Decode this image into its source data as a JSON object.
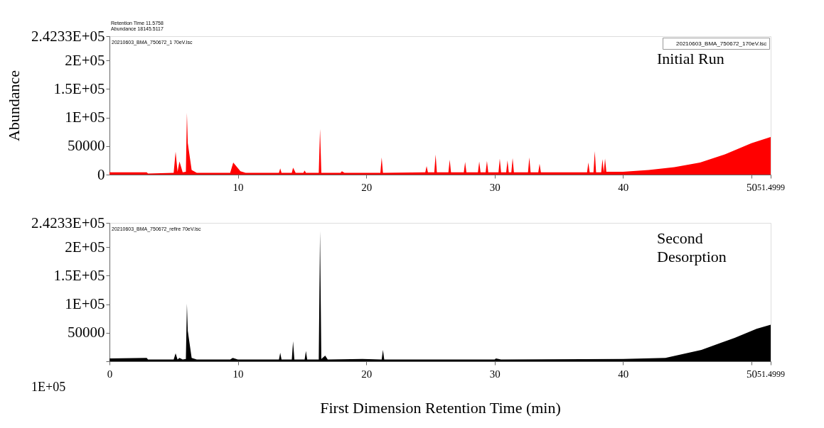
{
  "chart_data": [
    {
      "type": "area",
      "ylabel": "Abundance",
      "xlim": [
        0,
        51.4999
      ],
      "ylim": [
        0,
        242330
      ],
      "xticks": [
        10,
        20,
        30,
        40,
        50,
        51.4999
      ],
      "yticks": [
        0,
        50000,
        {
          "value": 100000,
          "label": "1E+05"
        },
        {
          "value": 150000,
          "label": "1.5E+05"
        },
        {
          "value": 200000,
          "label": "2E+05"
        },
        {
          "value": 242330,
          "label": "2.4233E+05"
        }
      ],
      "grid": false,
      "legend": "top right",
      "annotations": [
        "Retention Time 11.5758",
        "Abundance 18145.5117",
        "20210603_BMA_750672_1 70eV.lsc",
        "Initial Run"
      ],
      "series": [
        {
          "name": "20210603_BMA_750672_170eV.lsc",
          "color": "#ff0000",
          "x": [
            0,
            2.9,
            3.0,
            5.0,
            5.15,
            5.3,
            5.45,
            5.7,
            5.95,
            6.03,
            6.1,
            6.4,
            6.8,
            9.4,
            9.64,
            10.2,
            10.6,
            13.2,
            13.3,
            13.4,
            14.2,
            14.3,
            14.5,
            15.1,
            15.2,
            15.3,
            16.3,
            16.4,
            16.5,
            18.0,
            18.1,
            18.3,
            21.1,
            21.2,
            21.3,
            24.6,
            24.7,
            24.8,
            25.3,
            25.4,
            25.5,
            26.4,
            26.5,
            26.6,
            27.6,
            27.7,
            27.8,
            28.7,
            28.8,
            28.9,
            29.3,
            29.4,
            29.5,
            30.3,
            30.4,
            30.5,
            30.9,
            31.0,
            31.1,
            31.3,
            31.4,
            31.5,
            32.6,
            32.7,
            32.8,
            33.4,
            33.5,
            33.6,
            37.2,
            37.3,
            37.4,
            37.7,
            37.8,
            37.9,
            38.3,
            38.4,
            38.5,
            38.6,
            38.7,
            40,
            42,
            44,
            46,
            48,
            50,
            51.4999
          ],
          "values": [
            4000,
            4000,
            2000,
            3000,
            40000,
            5000,
            23000,
            4000,
            5000,
            108000,
            55000,
            8000,
            3000,
            3000,
            21000,
            6000,
            3000,
            3000,
            11000,
            3000,
            3000,
            12000,
            3000,
            3000,
            7000,
            3000,
            3000,
            80000,
            3000,
            3000,
            6000,
            3000,
            3000,
            30000,
            3000,
            4000,
            15000,
            4000,
            4000,
            35000,
            4000,
            4000,
            26000,
            4000,
            4000,
            22000,
            4000,
            4000,
            23000,
            4000,
            4000,
            24000,
            4000,
            4000,
            28000,
            4000,
            4000,
            25000,
            4000,
            4000,
            29000,
            4000,
            4000,
            30000,
            4000,
            4000,
            19000,
            4000,
            4000,
            21000,
            4000,
            4000,
            41000,
            4000,
            4000,
            27000,
            4000,
            28000,
            5000,
            5000,
            8000,
            13000,
            21000,
            36000,
            55000,
            66000
          ]
        }
      ]
    },
    {
      "type": "area",
      "xlabel": "First Dimension Retention Time (min)",
      "xlim": [
        0,
        51.4999
      ],
      "ylim": [
        0,
        242330
      ],
      "xticks": [
        0,
        10,
        20,
        30,
        40,
        50,
        51.4999
      ],
      "yticks": [
        {
          "value": 0,
          "label": null
        },
        50000,
        {
          "value": 100000,
          "label": "1E+05"
        },
        {
          "value": 150000,
          "label": "1.5E+05"
        },
        {
          "value": 200000,
          "label": "2E+05"
        },
        {
          "value": 242330,
          "label": "2.4233E+05"
        }
      ],
      "grid": false,
      "annotations": [
        "20210603_BMA_750672_refire 70eV.lsc",
        "Second Desorption",
        "1E+05"
      ],
      "series": [
        {
          "color": "#000000",
          "x": [
            0,
            2.9,
            3.0,
            5.0,
            5.15,
            5.3,
            5.45,
            5.7,
            5.95,
            6.03,
            6.1,
            6.4,
            6.8,
            9.4,
            9.6,
            10.0,
            13.2,
            13.3,
            13.4,
            14.2,
            14.3,
            14.4,
            15.2,
            15.3,
            15.4,
            16.3,
            16.4,
            16.5,
            16.8,
            17.0,
            19.7,
            21.2,
            21.3,
            21.4,
            30.0,
            30.1,
            30.5,
            40,
            43.3,
            46.1,
            48.7,
            50.4,
            51.4999
          ],
          "values": [
            5000,
            6000,
            3000,
            3000,
            14000,
            3000,
            6000,
            3000,
            4000,
            101000,
            53000,
            6000,
            3000,
            3000,
            6000,
            3000,
            3000,
            15000,
            3000,
            3000,
            35000,
            3000,
            3000,
            18000,
            3000,
            3000,
            228000,
            4000,
            10000,
            3000,
            4000,
            3000,
            20000,
            3000,
            3000,
            5000,
            3000,
            4000,
            6000,
            20000,
            41000,
            57000,
            64000
          ]
        }
      ]
    }
  ]
}
